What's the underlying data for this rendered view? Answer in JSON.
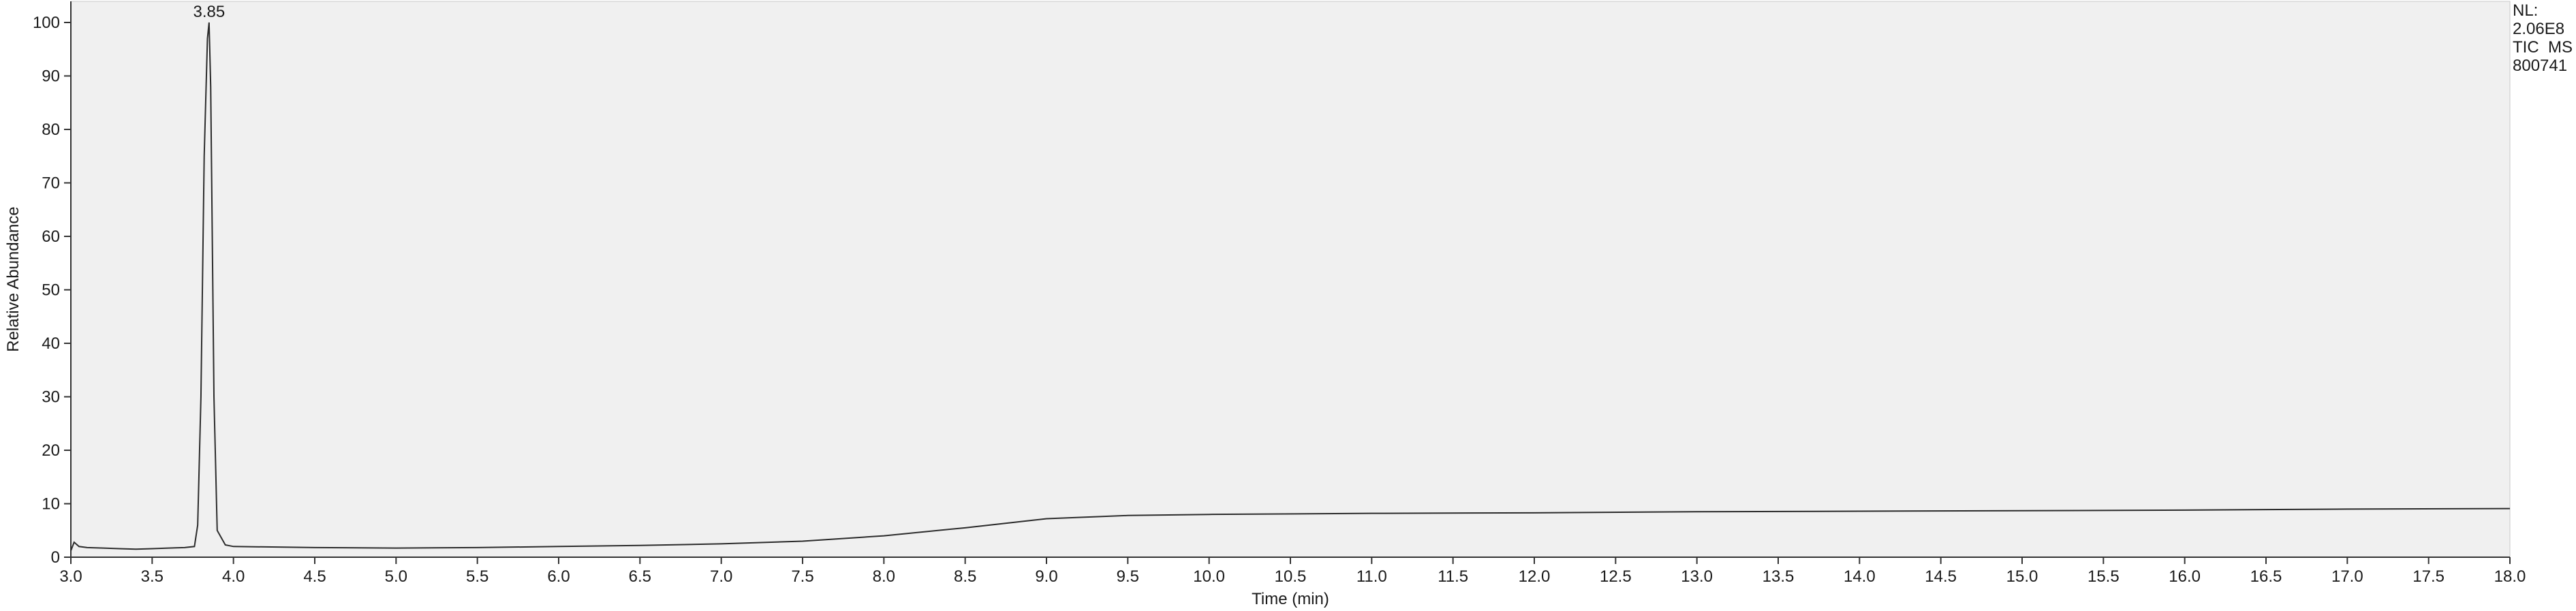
{
  "chart_data": {
    "type": "line",
    "xlabel": "Time (min)",
    "ylabel": "Relative Abundance",
    "xlim": [
      3.0,
      18.0
    ],
    "ylim": [
      0,
      100
    ],
    "x_ticks": [
      "3.0",
      "3.5",
      "4.0",
      "4.5",
      "5.0",
      "5.5",
      "6.0",
      "6.5",
      "7.0",
      "7.5",
      "8.0",
      "8.5",
      "9.0",
      "9.5",
      "10.0",
      "10.5",
      "11.0",
      "11.5",
      "12.0",
      "12.5",
      "13.0",
      "13.5",
      "14.0",
      "14.5",
      "15.0",
      "15.5",
      "16.0",
      "16.5",
      "17.0",
      "17.5",
      "18.0"
    ],
    "y_ticks": [
      "0",
      "10",
      "20",
      "30",
      "40",
      "50",
      "60",
      "70",
      "80",
      "90",
      "100"
    ],
    "peak_label": {
      "x": 3.85,
      "text": "3.85"
    },
    "series": [
      {
        "x": [
          3.0,
          3.02,
          3.05,
          3.1,
          3.2,
          3.3,
          3.4,
          3.5,
          3.6,
          3.7,
          3.76,
          3.78,
          3.8,
          3.82,
          3.84,
          3.85,
          3.86,
          3.88,
          3.9,
          3.95,
          4.0,
          4.5,
          5.0,
          5.5,
          6.0,
          6.5,
          7.0,
          7.5,
          8.0,
          8.5,
          9.0,
          9.5,
          10.0,
          11.0,
          12.0,
          13.0,
          14.0,
          15.0,
          16.0,
          17.0,
          18.0
        ],
        "y": [
          1.2,
          2.8,
          2.0,
          1.8,
          1.7,
          1.6,
          1.5,
          1.6,
          1.7,
          1.8,
          2.0,
          6.0,
          30.0,
          75.0,
          97.0,
          100.0,
          88.0,
          30.0,
          5.0,
          2.3,
          2.0,
          1.8,
          1.7,
          1.8,
          2.0,
          2.2,
          2.5,
          3.0,
          4.0,
          5.5,
          7.2,
          7.8,
          8.0,
          8.2,
          8.3,
          8.5,
          8.6,
          8.7,
          8.8,
          9.0,
          9.1
        ]
      }
    ]
  },
  "info": {
    "nl_label": "NL:",
    "nl_value": "2.06E8",
    "scan_type": "TIC  MS",
    "sample_id": "800741"
  }
}
